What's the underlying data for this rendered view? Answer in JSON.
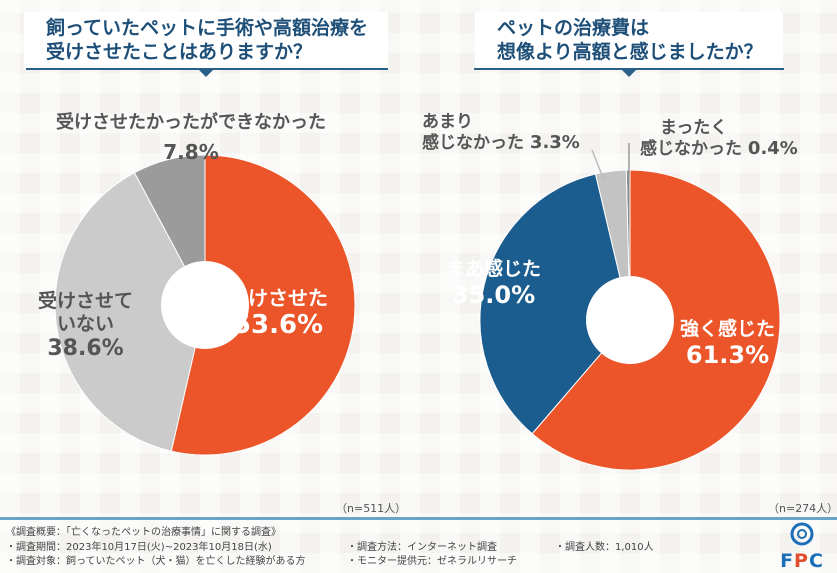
{
  "chart_data": [
    {
      "type": "pie",
      "title": "飼っていたペットに手術や高額治療を受けさせたことはありますか？",
      "slices": [
        {
          "label": "受けさせた",
          "value": 53.6,
          "display": "53.6%",
          "color": "#ec552a"
        },
        {
          "label": "受けさせていない",
          "value": 38.6,
          "display": "38.6%",
          "color": "#cbcbcb"
        },
        {
          "label": "受けさせたかったができなかった",
          "value": 7.8,
          "display": "7.8%",
          "color": "#9b9b9b"
        }
      ],
      "sample": "（n=511人）"
    },
    {
      "type": "pie",
      "title": "ペットの治療費は想像より高額と感じましたか？",
      "slices": [
        {
          "label": "強く感じた",
          "value": 61.3,
          "display": "61.3%",
          "color": "#ec552a"
        },
        {
          "label": "まあ感じた",
          "value": 35.0,
          "display": "35.0%",
          "color": "#1c5d90"
        },
        {
          "label": "あまり感じなかった",
          "value": 3.3,
          "display": "3.3%",
          "color": "#c3c3c3"
        },
        {
          "label": "まったく感じなかった",
          "value": 0.4,
          "display": "0.4%",
          "color": "#8a8a8a"
        }
      ],
      "sample": "（n=274人）"
    }
  ],
  "titles": {
    "left_1": "飼っていたペットに手術や高額治療を",
    "left_2": "受けさせたことはありますか？",
    "right_1": "ペットの治療費は",
    "right_2": "想像より高額と感じましたか？"
  },
  "labels": {
    "l_red": "受けさせた",
    "l_gray1": "受けさせて",
    "l_gray2": "いない",
    "l_dark": "受けさせたかったができなかった",
    "r_red": "強く感じた",
    "r_blue": "まあ感じた",
    "r_light1": "あまり",
    "r_light2": "感じなかった",
    "r_tiny1": "まったく",
    "r_tiny2": "感じなかった"
  },
  "footer": {
    "heading": "《調査概要：「亡くなったペットの治療事情」に関する調査》",
    "period": "・調査期間：2023年10月17日(火)~2023年10月18日(水)",
    "target": "・調査対象：飼っていたペット（犬・猫）を亡くした経験がある方",
    "method": "・調査方法：インターネット調査",
    "monitor": "・モニター提供元：ゼネラルリサーチ",
    "count": "・調査人数：1,010人",
    "logo": "FPC"
  }
}
